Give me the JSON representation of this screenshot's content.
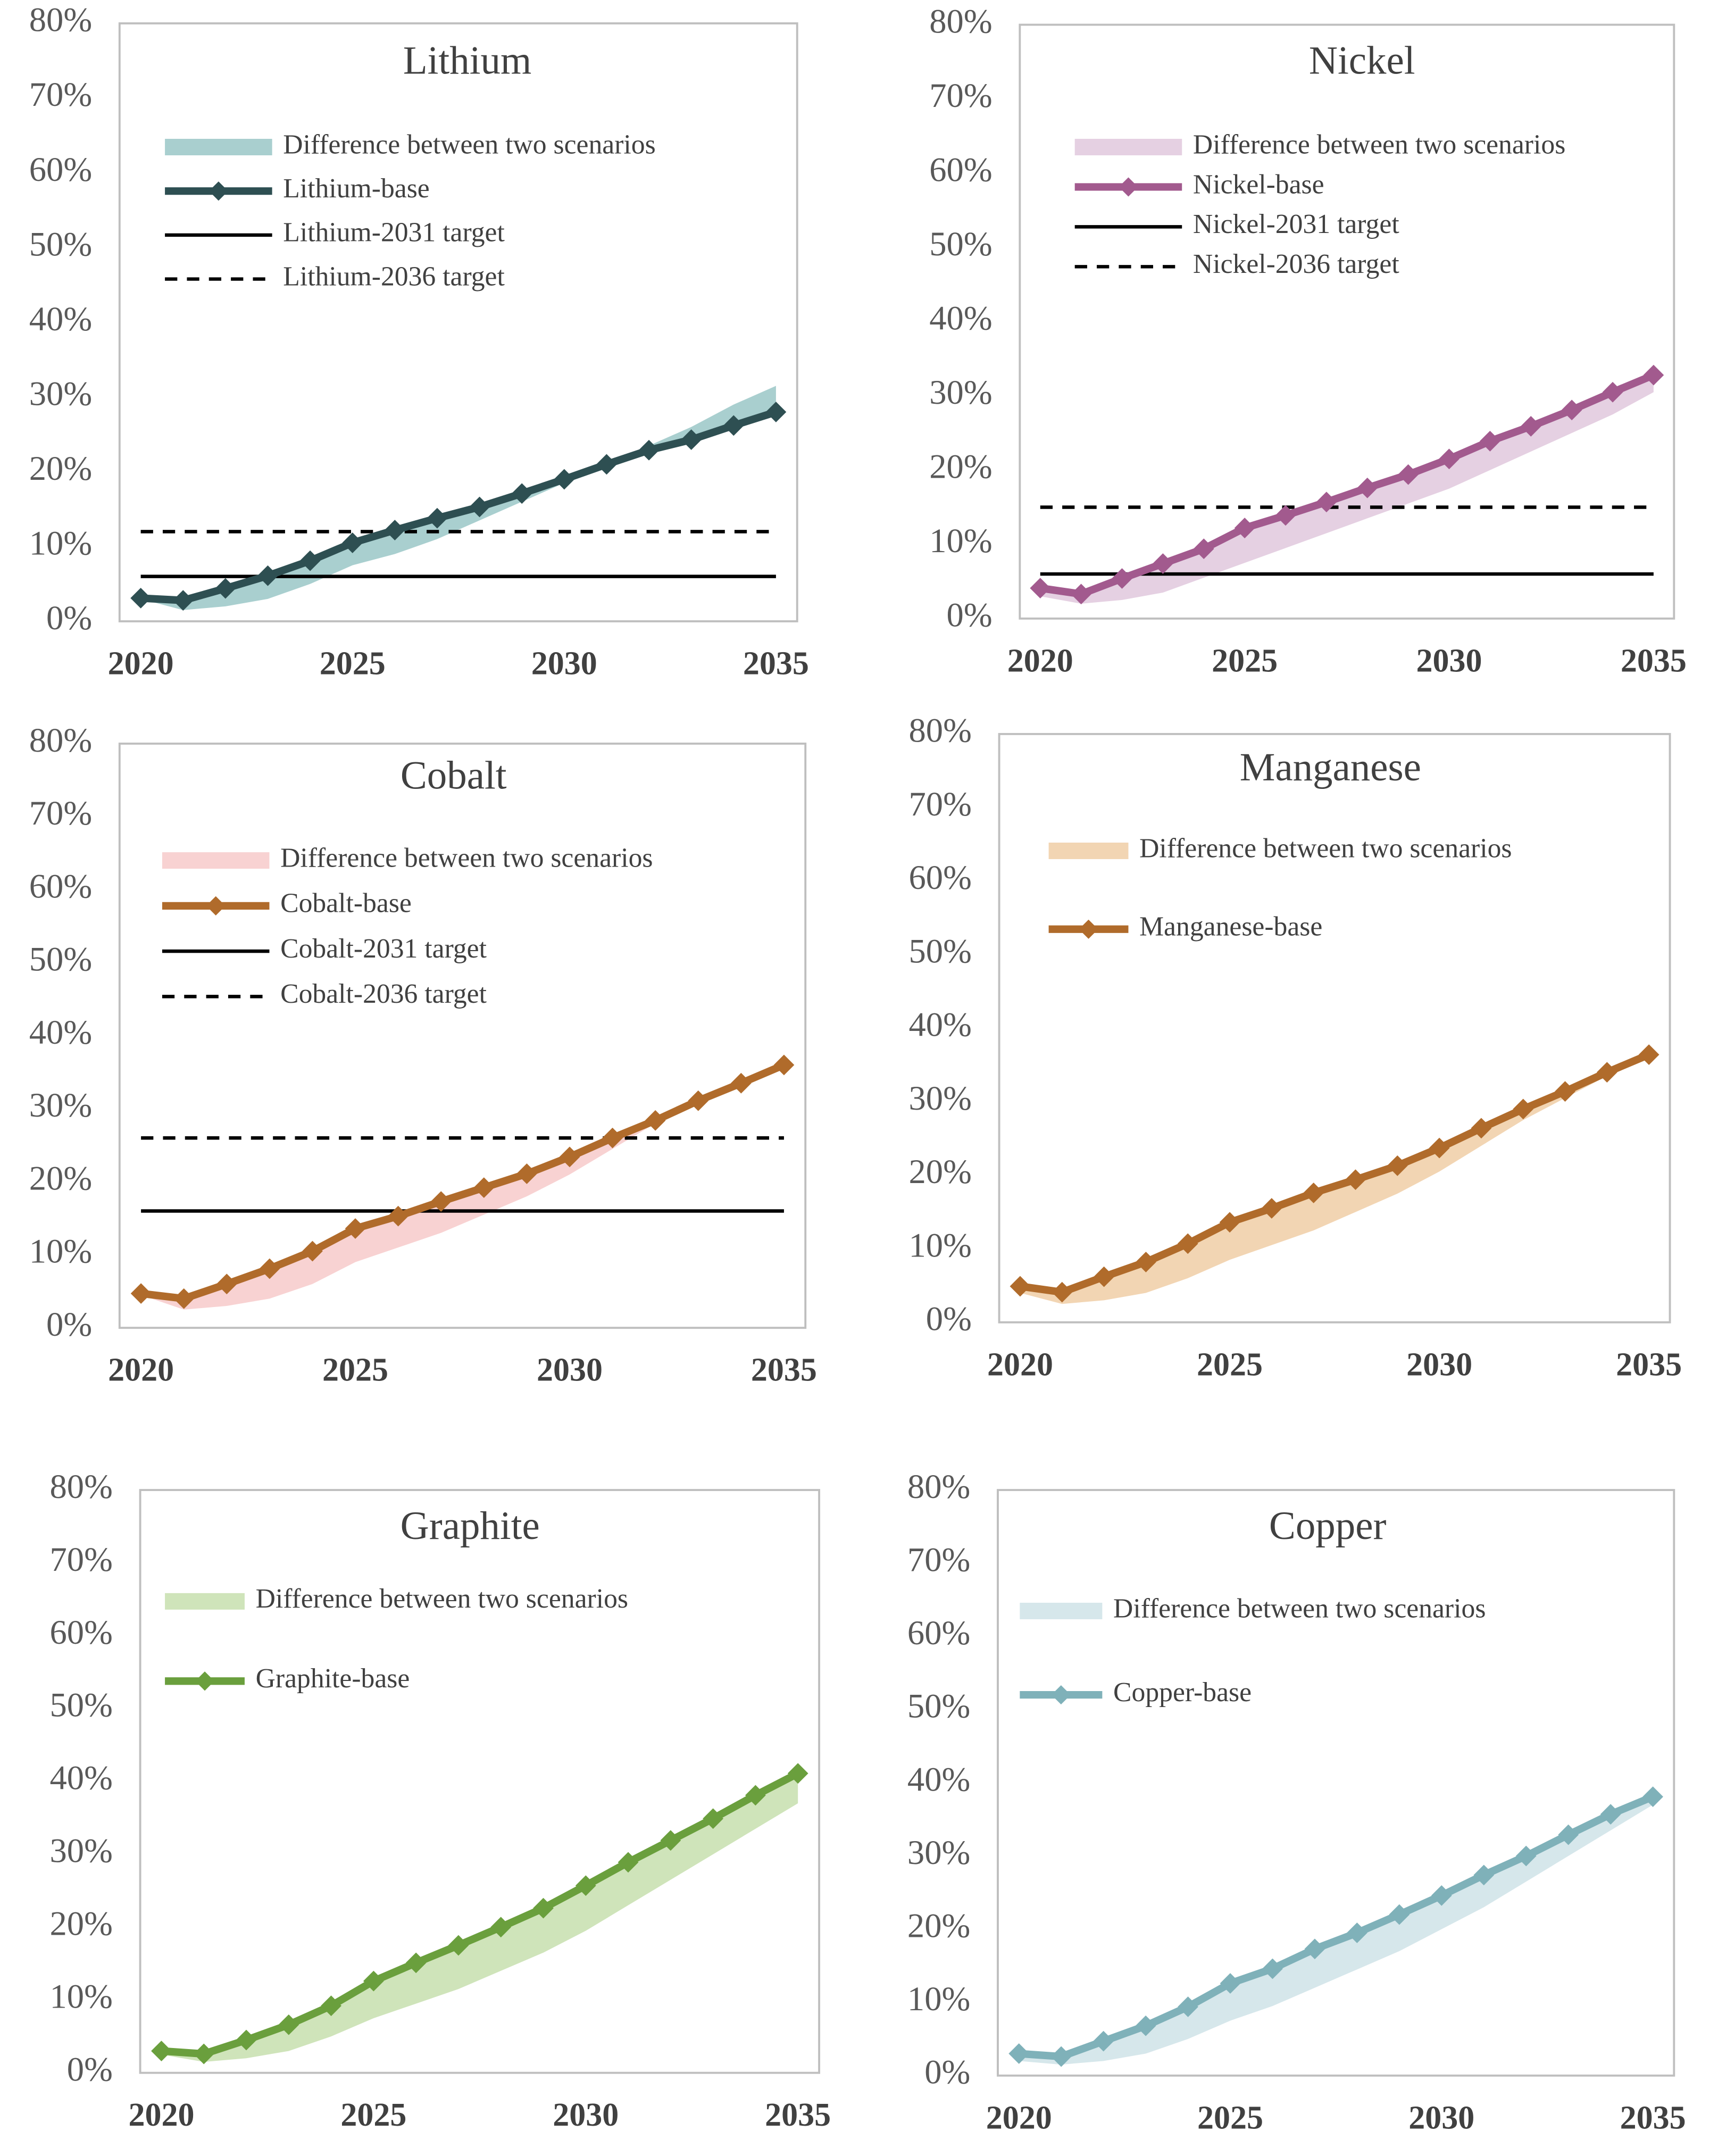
{
  "chart_data": [
    {
      "type": "line",
      "title": "Lithium",
      "x": [
        2020,
        2021,
        2022,
        2023,
        2024,
        2025,
        2026,
        2027,
        2028,
        2029,
        2030,
        2031,
        2032,
        2033,
        2034,
        2035
      ],
      "xlim": [
        2019.5,
        2035.5
      ],
      "xticks": [
        2020,
        2025,
        2030,
        2035
      ],
      "ylim": [
        0,
        80
      ],
      "yticks": [
        {
          "value": 0,
          "label": "0%"
        },
        {
          "value": 10,
          "label": "10%"
        },
        {
          "value": 20,
          "label": "20%"
        },
        {
          "value": 30,
          "label": "30%"
        },
        {
          "value": 40,
          "label": "40%"
        },
        {
          "value": 50,
          "label": "50%"
        },
        {
          "value": 60,
          "label": "60%"
        },
        {
          "value": 70,
          "label": "70%"
        },
        {
          "value": 80,
          "label": "80%"
        }
      ],
      "series": [
        {
          "name": "Difference between two scenarios",
          "color": "#a9cfcf",
          "style": "band",
          "values": [
            3,
            1.5,
            2,
            3,
            5,
            7.5,
            9,
            11,
            13.5,
            16,
            18.5,
            21,
            23.5,
            26,
            29,
            31.5
          ]
        },
        {
          "name": "Lithium-base",
          "color": "#2e4f52",
          "style": "line",
          "marker": "diamond",
          "values": [
            3.1,
            2.8,
            4.4,
            6.1,
            8.1,
            10.5,
            12.2,
            13.8,
            15.3,
            17.1,
            19.0,
            21.0,
            22.9,
            24.3,
            26.2,
            28.0
          ]
        },
        {
          "name": "Lithium-2031 target",
          "color": "#000000",
          "style": "line",
          "values": [
            6,
            6,
            6,
            6,
            6,
            6,
            6,
            6,
            6,
            6,
            6,
            6,
            6,
            6,
            6,
            6
          ]
        },
        {
          "name": "Lithium-2036 target",
          "color": "#000000",
          "style": "dashed",
          "values": [
            12,
            12,
            12,
            12,
            12,
            12,
            12,
            12,
            12,
            12,
            12,
            12,
            12,
            12,
            12,
            12
          ]
        }
      ]
    },
    {
      "type": "line",
      "title": "Nickel",
      "x": [
        2020,
        2021,
        2022,
        2023,
        2024,
        2025,
        2026,
        2027,
        2028,
        2029,
        2030,
        2031,
        2032,
        2033,
        2034,
        2035
      ],
      "xlim": [
        2019.5,
        2035.5
      ],
      "xticks": [
        2020,
        2025,
        2030,
        2035
      ],
      "ylim": [
        0,
        80
      ],
      "yticks": [
        {
          "value": 0,
          "label": "0%"
        },
        {
          "value": 10,
          "label": "10%"
        },
        {
          "value": 20,
          "label": "20%"
        },
        {
          "value": 30,
          "label": "30%"
        },
        {
          "value": 40,
          "label": "40%"
        },
        {
          "value": 50,
          "label": "50%"
        },
        {
          "value": 60,
          "label": "60%"
        },
        {
          "value": 70,
          "label": "70%"
        },
        {
          "value": 80,
          "label": "80%"
        }
      ],
      "series": [
        {
          "name": "Difference between two scenarios",
          "color": "#e5d0e2",
          "style": "band",
          "values": [
            3,
            2,
            2.5,
            3.5,
            5.5,
            7.5,
            9.5,
            11.5,
            13.5,
            15.5,
            17.5,
            20,
            22.5,
            25,
            27.5,
            30.5
          ]
        },
        {
          "name": "Nickel-base",
          "color": "#a25a8e",
          "style": "line",
          "marker": "diamond",
          "values": [
            4.1,
            3.3,
            5.4,
            7.4,
            9.4,
            12.2,
            13.9,
            15.7,
            17.6,
            19.4,
            21.5,
            23.9,
            25.9,
            28.1,
            30.5,
            32.8
          ]
        },
        {
          "name": "Nickel-2031 target",
          "color": "#000000",
          "style": "line",
          "values": [
            6,
            6,
            6,
            6,
            6,
            6,
            6,
            6,
            6,
            6,
            6,
            6,
            6,
            6,
            6,
            6
          ]
        },
        {
          "name": "Nickel-2036 target",
          "color": "#000000",
          "style": "dashed",
          "values": [
            15,
            15,
            15,
            15,
            15,
            15,
            15,
            15,
            15,
            15,
            15,
            15,
            15,
            15,
            15,
            15
          ]
        }
      ]
    },
    {
      "type": "line",
      "title": "Cobalt",
      "x": [
        2020,
        2021,
        2022,
        2023,
        2024,
        2025,
        2026,
        2027,
        2028,
        2029,
        2030,
        2031,
        2032,
        2033,
        2034,
        2035
      ],
      "xlim": [
        2019.5,
        2035.5
      ],
      "xticks": [
        2020,
        2025,
        2030,
        2035
      ],
      "ylim": [
        0,
        80
      ],
      "yticks": [
        {
          "value": 0,
          "label": "0%"
        },
        {
          "value": 10,
          "label": "10%"
        },
        {
          "value": 20,
          "label": "20%"
        },
        {
          "value": 30,
          "label": "30%"
        },
        {
          "value": 40,
          "label": "40%"
        },
        {
          "value": 50,
          "label": "50%"
        },
        {
          "value": 60,
          "label": "60%"
        },
        {
          "value": 70,
          "label": "70%"
        },
        {
          "value": 80,
          "label": "80%"
        }
      ],
      "series": [
        {
          "name": "Difference between two scenarios",
          "color": "#f8d2d2",
          "style": "band",
          "values": [
            4.5,
            2.5,
            3,
            4,
            6,
            9,
            11,
            13,
            15.5,
            18,
            21,
            24.5,
            28,
            31,
            33.5,
            36
          ]
        },
        {
          "name": "Cobalt-base",
          "color": "#b06b2b",
          "style": "line",
          "marker": "diamond",
          "values": [
            4.7,
            4.0,
            6.0,
            8.1,
            10.5,
            13.6,
            15.3,
            17.3,
            19.2,
            21.1,
            23.4,
            26.0,
            28.4,
            31.1,
            33.5,
            36.0
          ]
        },
        {
          "name": "Cobalt-2031 target",
          "color": "#000000",
          "style": "line",
          "values": [
            16,
            16,
            16,
            16,
            16,
            16,
            16,
            16,
            16,
            16,
            16,
            16,
            16,
            16,
            16,
            16
          ]
        },
        {
          "name": "Cobalt-2036 target",
          "color": "#000000",
          "style": "dashed",
          "values": [
            26,
            26,
            26,
            26,
            26,
            26,
            26,
            26,
            26,
            26,
            26,
            26,
            26,
            26,
            26,
            26
          ]
        }
      ]
    },
    {
      "type": "line",
      "title": "Manganese",
      "x": [
        2020,
        2021,
        2022,
        2023,
        2024,
        2025,
        2026,
        2027,
        2028,
        2029,
        2030,
        2031,
        2032,
        2033,
        2034,
        2035
      ],
      "xlim": [
        2019.5,
        2035.5
      ],
      "xticks": [
        2020,
        2025,
        2030,
        2035
      ],
      "ylim": [
        0,
        80
      ],
      "yticks": [
        {
          "value": 0,
          "label": "0%"
        },
        {
          "value": 10,
          "label": "10%"
        },
        {
          "value": 20,
          "label": "20%"
        },
        {
          "value": 30,
          "label": "30%"
        },
        {
          "value": 40,
          "label": "40%"
        },
        {
          "value": 50,
          "label": "50%"
        },
        {
          "value": 60,
          "label": "60%"
        },
        {
          "value": 70,
          "label": "70%"
        },
        {
          "value": 80,
          "label": "80%"
        }
      ],
      "series": [
        {
          "name": "Difference between two scenarios",
          "color": "#f2d5b3",
          "style": "band",
          "values": [
            4,
            2.5,
            3,
            4,
            6,
            8.5,
            10.5,
            12.5,
            15,
            17.5,
            20.5,
            24,
            27.5,
            30.5,
            33.5,
            36
          ]
        },
        {
          "name": "Manganese-base",
          "color": "#b06b2b",
          "style": "line",
          "marker": "diamond",
          "values": [
            4.9,
            4.1,
            6.2,
            8.2,
            10.7,
            13.6,
            15.5,
            17.6,
            19.4,
            21.3,
            23.7,
            26.4,
            29.0,
            31.4,
            34.0,
            36.4
          ]
        }
      ]
    },
    {
      "type": "line",
      "title": "Graphite",
      "x": [
        2020,
        2021,
        2022,
        2023,
        2024,
        2025,
        2026,
        2027,
        2028,
        2029,
        2030,
        2031,
        2032,
        2033,
        2034,
        2035
      ],
      "xlim": [
        2019.5,
        2035.5
      ],
      "xticks": [
        2020,
        2025,
        2030,
        2035
      ],
      "ylim": [
        0,
        80
      ],
      "yticks": [
        {
          "value": 0,
          "label": "0%"
        },
        {
          "value": 10,
          "label": "10%"
        },
        {
          "value": 20,
          "label": "20%"
        },
        {
          "value": 30,
          "label": "30%"
        },
        {
          "value": 40,
          "label": "40%"
        },
        {
          "value": 50,
          "label": "50%"
        },
        {
          "value": 60,
          "label": "60%"
        },
        {
          "value": 70,
          "label": "70%"
        },
        {
          "value": 80,
          "label": "80%"
        }
      ],
      "series": [
        {
          "name": "Difference between two scenarios",
          "color": "#cfe4ba",
          "style": "band",
          "values": [
            2.5,
            1.5,
            2,
            3,
            5,
            7.5,
            9.5,
            11.5,
            14,
            16.5,
            19.5,
            23,
            26.5,
            30,
            33.5,
            37
          ]
        },
        {
          "name": "Graphite-base",
          "color": "#6a9f3d",
          "style": "line",
          "marker": "diamond",
          "values": [
            3.0,
            2.6,
            4.5,
            6.6,
            9.2,
            12.6,
            15.1,
            17.5,
            20.0,
            22.6,
            25.7,
            28.9,
            31.9,
            34.9,
            38.1,
            41.1
          ]
        }
      ]
    },
    {
      "type": "line",
      "title": "Copper",
      "x": [
        2020,
        2021,
        2022,
        2023,
        2024,
        2025,
        2026,
        2027,
        2028,
        2029,
        2030,
        2031,
        2032,
        2033,
        2034,
        2035
      ],
      "xlim": [
        2019.5,
        2035.5
      ],
      "xticks": [
        2020,
        2025,
        2030,
        2035
      ],
      "ylim": [
        0,
        80
      ],
      "yticks": [
        {
          "value": 0,
          "label": "0%"
        },
        {
          "value": 10,
          "label": "10%"
        },
        {
          "value": 20,
          "label": "20%"
        },
        {
          "value": 30,
          "label": "30%"
        },
        {
          "value": 40,
          "label": "40%"
        },
        {
          "value": 50,
          "label": "50%"
        },
        {
          "value": 60,
          "label": "60%"
        },
        {
          "value": 70,
          "label": "70%"
        },
        {
          "value": 80,
          "label": "80%"
        }
      ],
      "series": [
        {
          "name": "Difference between two scenarios",
          "color": "#d6e7eb",
          "style": "band",
          "values": [
            2,
            1.5,
            2,
            3,
            5,
            7.5,
            9.5,
            12,
            14.5,
            17,
            20,
            23,
            26.5,
            30,
            33.5,
            37
          ]
        },
        {
          "name": "Copper-base",
          "color": "#7fb1b9",
          "style": "line",
          "marker": "diamond",
          "values": [
            3.0,
            2.6,
            4.7,
            6.8,
            9.4,
            12.6,
            14.6,
            17.3,
            19.5,
            22.0,
            24.6,
            27.4,
            30.0,
            32.9,
            35.7,
            38.1
          ]
        }
      ]
    }
  ]
}
